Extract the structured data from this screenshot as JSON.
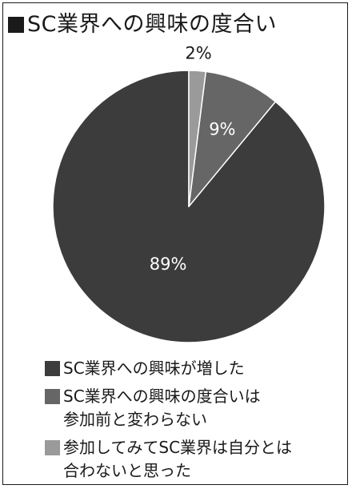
{
  "chart_data": {
    "type": "pie",
    "title": "SC業界への興味の度合い",
    "slices": [
      {
        "label": "SC業界への興味が増した",
        "value": 89,
        "display": "89%",
        "color": "#3c3c3c",
        "text_color": "#ffffff"
      },
      {
        "label": "SC業界への興味の度合いは\n参加前と変わらない",
        "value": 9,
        "display": "9%",
        "color": "#666666",
        "text_color": "#ffffff"
      },
      {
        "label": "参加してみてSC業界は自分とは\n合わないと思った",
        "value": 2,
        "display": "2%",
        "color": "#9a9a9a",
        "text_color": "#1a1a1a"
      }
    ],
    "legend_position": "bottom"
  },
  "colors": {
    "frame": "#1a1a1a",
    "slice_border": "#ffffff"
  }
}
